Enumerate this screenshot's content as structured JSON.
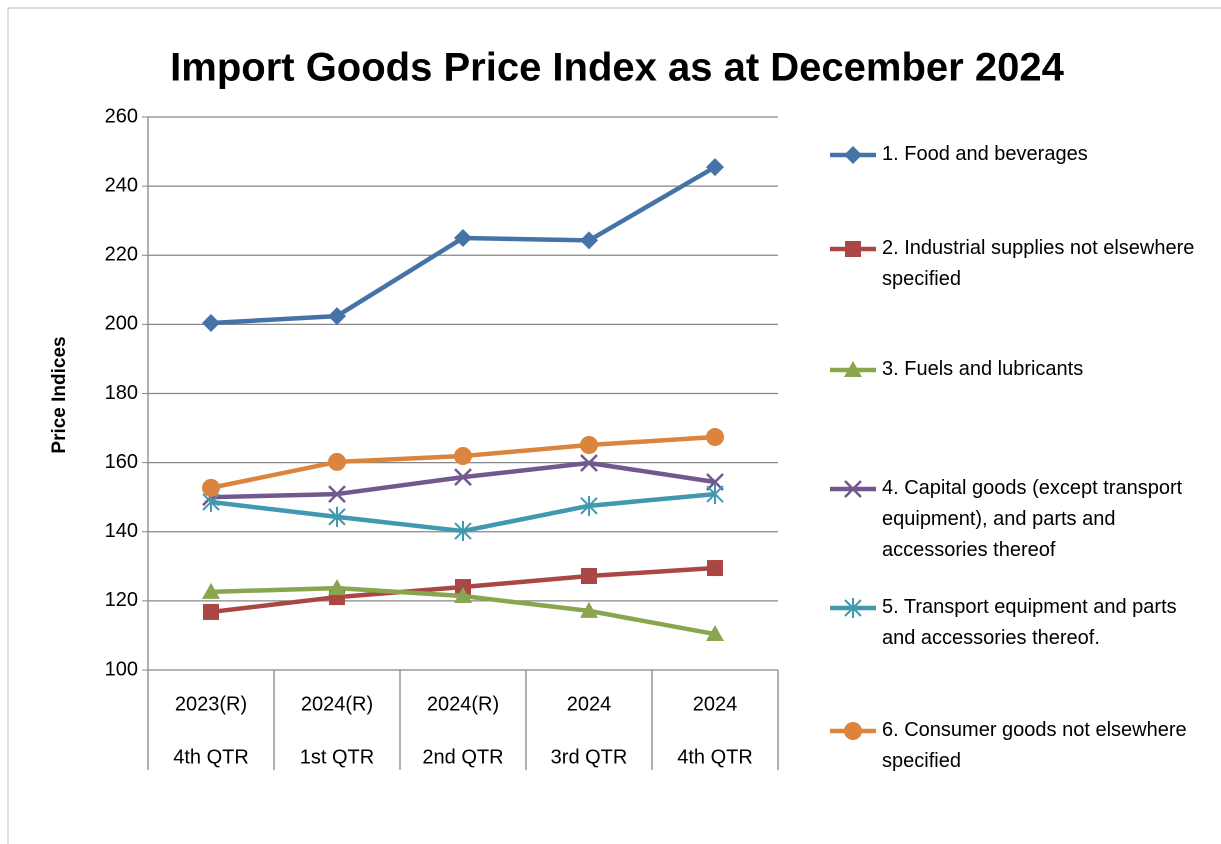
{
  "chart_data": {
    "type": "line",
    "title": "Import Goods Price Index as at December 2024",
    "y_label": "Price Indices",
    "categories": [
      [
        "2023(R)",
        "4th QTR"
      ],
      [
        "2024(R)",
        "1st QTR"
      ],
      [
        "2024(R)",
        "2nd QTR"
      ],
      [
        "2024",
        "3rd QTR"
      ],
      [
        "2024",
        "4th QTR"
      ]
    ],
    "series": [
      {
        "name": "1. Food and beverages",
        "color": "#4572a7",
        "marker": "diamond",
        "values": [
          200.4,
          202.4,
          225,
          224.3,
          245.5
        ]
      },
      {
        "name": "2. Industrial supplies not elsewhere specified",
        "color": "#aa4643",
        "marker": "square",
        "values": [
          116.8,
          121.1,
          124,
          127.2,
          129.5
        ]
      },
      {
        "name": "3. Fuels and lubricants",
        "color": "#89a54e",
        "marker": "triangle",
        "values": [
          122.6,
          123.7,
          121.4,
          117.1,
          110.4
        ]
      },
      {
        "name": "4. Capital goods (except transport equipment), and parts and accessories thereof",
        "color": "#71588f",
        "marker": "x",
        "values": [
          150,
          150.9,
          155.8,
          159.9,
          154.4
        ]
      },
      {
        "name": "5. Transport equipment and parts and accessories thereof.",
        "color": "#4198af",
        "marker": "star",
        "values": [
          148.6,
          144.3,
          140.2,
          147.5,
          150.9
        ]
      },
      {
        "name": "6. Consumer goods not elsewhere specified",
        "color": "#db843d",
        "marker": "circle",
        "values": [
          152.7,
          160.2,
          161.9,
          165.1,
          167.4
        ]
      }
    ],
    "ylim": [
      100,
      260
    ],
    "yticks": [
      100,
      120,
      140,
      160,
      180,
      200,
      220,
      240,
      260
    ],
    "grid": true,
    "legend": "right"
  }
}
